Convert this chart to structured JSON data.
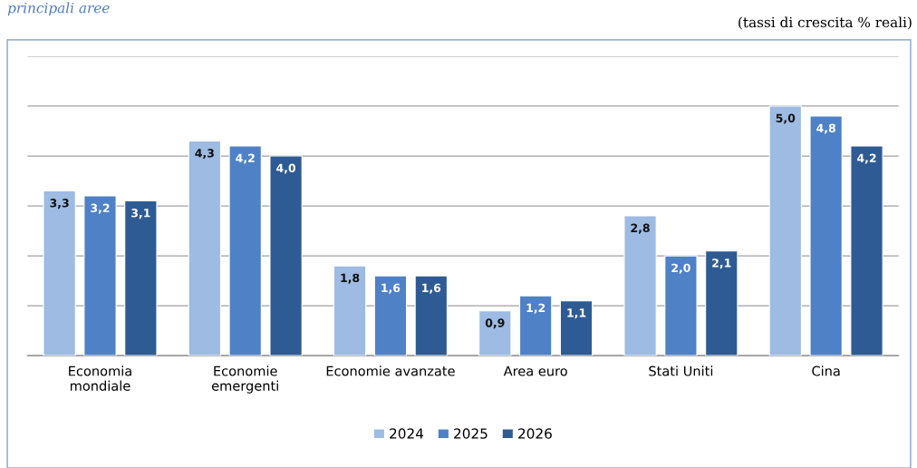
{
  "chart_data": {
    "type": "bar",
    "title": "principali aree",
    "annotations": [
      "(tassi di crescita % reali)"
    ],
    "categories": [
      "Economia\nmondiale",
      "Economie\nemergenti",
      "Economie avanzate",
      "Area euro",
      "Stati Uniti",
      "Cina"
    ],
    "series": [
      {
        "name": "2024",
        "color": "#9dbbe3",
        "values": [
          3.3,
          4.3,
          1.8,
          0.9,
          2.8,
          5.0
        ],
        "value_labels": [
          "3,3",
          "4,3",
          "1,8",
          "0,9",
          "2,8",
          "5,0"
        ]
      },
      {
        "name": "2025",
        "color": "#4f81c7",
        "values": [
          3.2,
          4.2,
          1.6,
          1.2,
          2.0,
          4.8
        ],
        "value_labels": [
          "3,2",
          "4,2",
          "1,6",
          "1,2",
          "2,0",
          "4,8"
        ]
      },
      {
        "name": "2026",
        "color": "#2f5b94",
        "values": [
          3.1,
          4.0,
          1.6,
          1.1,
          2.1,
          4.2
        ],
        "value_labels": [
          "3,1",
          "4,0",
          "1,6",
          "1,1",
          "2,1",
          "4,2"
        ]
      }
    ],
    "tick_labels": "x",
    "grid": "y",
    "legend": "bottom"
  }
}
